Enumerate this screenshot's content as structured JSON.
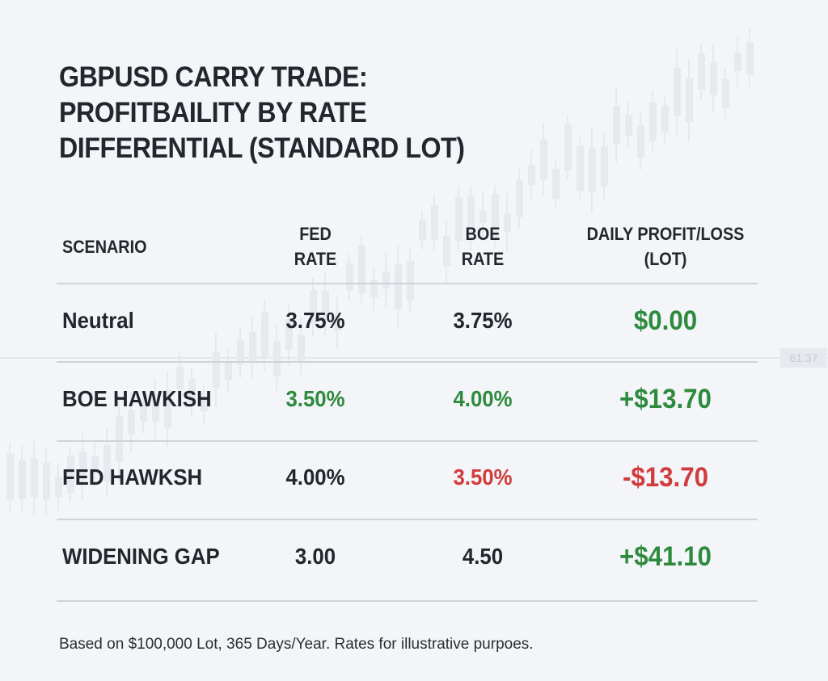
{
  "title_lines": [
    "GBPUSD CARRY TRADE:",
    "PROFITBAILITY BY RATE",
    "DIFFERENTIAL (STANDARD LOT)"
  ],
  "headers": {
    "scenario": "SCENARIO",
    "fed_1": "FED",
    "fed_2": "RATE",
    "boe_1": "BOE",
    "boe_2": "RATE",
    "pnl_1": "DAILY PROFIT/LOSS",
    "pnl_2": "(LOT)"
  },
  "rows": [
    {
      "scenario": "Neutral",
      "fed": "3.75%",
      "boe": "3.75%",
      "pnl": "$0.00",
      "fed_color": "#23272d",
      "boe_color": "#23272d",
      "pnl_color": "#2e8b3e"
    },
    {
      "scenario": "BOE HAWKISH",
      "fed": "3.50%",
      "boe": "4.00%",
      "pnl": "+$13.70",
      "fed_color": "#2e8b3e",
      "boe_color": "#2e8b3e",
      "pnl_color": "#2e8b3e"
    },
    {
      "scenario": "FED HAWKSH",
      "fed": "4.00%",
      "boe": "3.50%",
      "pnl": "-$13.70",
      "fed_color": "#23272d",
      "boe_color": "#d13c3c",
      "pnl_color": "#d13c3c"
    },
    {
      "scenario": "WIDENING GAP",
      "fed": "3.00",
      "boe": "4.50",
      "pnl": "+$41.10",
      "fed_color": "#23272d",
      "boe_color": "#23272d",
      "pnl_color": "#2e8b3e"
    }
  ],
  "footnote": "Based on $100,000 Lot, 365 Days/Year. Rates for illustrative purpoes.",
  "price_tag": "61.37",
  "colors": {
    "positive": "#2e8b3e",
    "negative": "#d13c3c",
    "text": "#23272d",
    "background": "#f3f5f8"
  }
}
